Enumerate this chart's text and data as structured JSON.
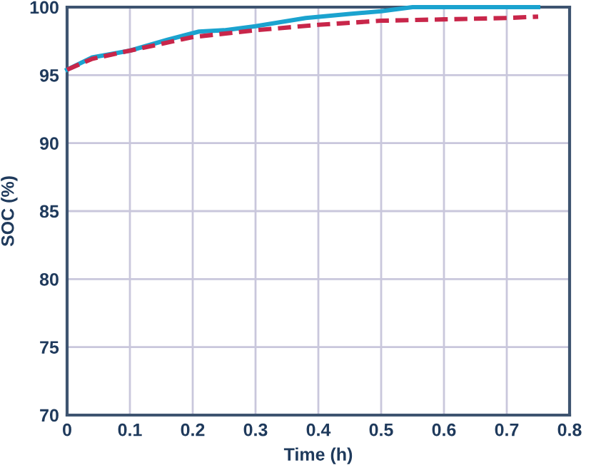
{
  "chart_data": {
    "type": "line",
    "xlabel": "Time (h)",
    "ylabel": "SOC (%)",
    "xlim": [
      0,
      0.8
    ],
    "xticks": [
      0,
      0.1,
      0.2,
      0.3,
      0.4,
      0.5,
      0.6,
      0.7,
      0.8
    ],
    "ylim": [
      70,
      100
    ],
    "yticks": [
      70,
      75,
      80,
      85,
      90,
      95,
      100
    ],
    "grid": true,
    "marker": "none",
    "series": [
      {
        "color": "#1ba3cf",
        "line_style": "solid",
        "x": [
          0,
          0.04,
          0.1,
          0.16,
          0.21,
          0.25,
          0.3,
          0.38,
          0.45,
          0.5,
          0.55,
          0.75
        ],
        "values": [
          95.4,
          96.3,
          96.8,
          97.6,
          98.2,
          98.3,
          98.6,
          99.2,
          99.5,
          99.7,
          100,
          100
        ]
      },
      {
        "color": "#c8264a",
        "line_style": "dashed",
        "x": [
          0,
          0.04,
          0.1,
          0.2,
          0.3,
          0.4,
          0.5,
          0.6,
          0.7,
          0.75
        ],
        "values": [
          95.4,
          96.2,
          96.8,
          97.8,
          98.3,
          98.7,
          99.0,
          99.1,
          99.2,
          99.3
        ]
      }
    ]
  }
}
